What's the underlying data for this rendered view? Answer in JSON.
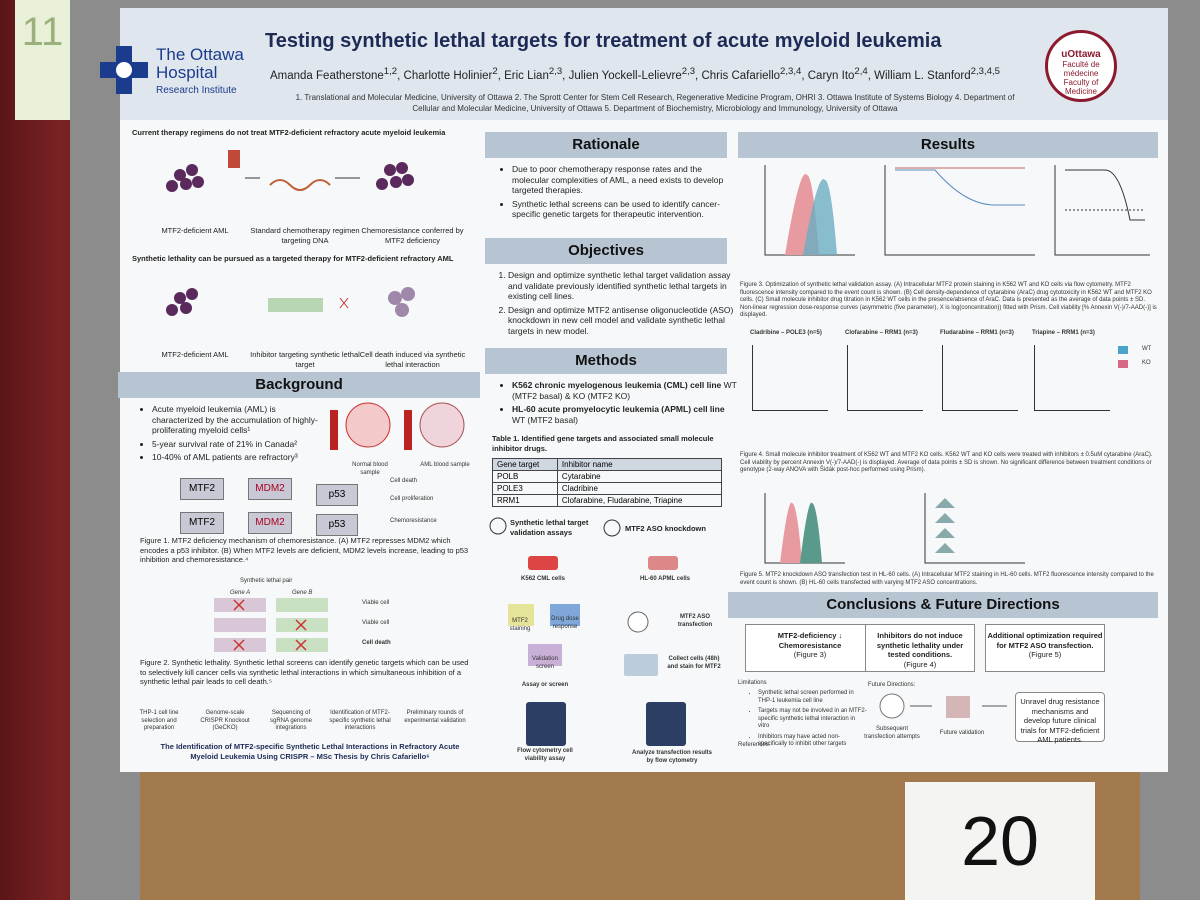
{
  "sign_left": "11",
  "card": "20",
  "header": {
    "logo_left": [
      "The Ottawa",
      "Hospital",
      "Research Institute"
    ],
    "logo_right": [
      "uOttawa",
      "Faculté de médecine",
      "Faculty of Medicine"
    ],
    "title": "Testing synthetic lethal targets for treatment of acute myeloid leukemia",
    "authors": [
      {
        "name": "Amanda Featherstone",
        "sup": "1,2"
      },
      {
        "name": "Charlotte Holinier",
        "sup": "2"
      },
      {
        "name": "Eric Lian",
        "sup": "2,3"
      },
      {
        "name": "Julien Yockell-Lelievre",
        "sup": "2,3"
      },
      {
        "name": "Chris Cafariello",
        "sup": "2,3,4"
      },
      {
        "name": "Caryn Ito",
        "sup": "2,4"
      },
      {
        "name": "William L. Stanford",
        "sup": "2,3,4,5"
      }
    ],
    "affiliations": "1. Translational and Molecular Medicine, University of Ottawa 2. The Sprott Center for Stem Cell Research, Regenerative Medicine Program, OHRI 3. Ottawa Institute of Systems Biology 4. Department of Cellular and Molecular Medicine, University of Ottawa 5. Department of Biochemistry, Microbiology and Immunology, University of Ottawa"
  },
  "intro": {
    "therapy_heading": "Current therapy regimens do not treat MTF2-deficient refractory acute myeloid leukemia",
    "therapy_steps": [
      "MTF2-deficient AML",
      "Standard chemotherapy regimen targeting DNA",
      "Chemoresistance conferred by MTF2 deficiency"
    ],
    "synthetic_heading": "Synthetic lethality can be pursued as a targeted therapy for MTF2-deficient refractory AML",
    "synthetic_steps": [
      "MTF2-deficient AML",
      "Inhibitor targeting synthetic lethal target",
      "Cell death induced via synthetic lethal interaction"
    ]
  },
  "background": {
    "heading": "Background",
    "bullets": [
      "Acute myeloid leukemia (AML) is characterized by the accumulation of highly-proliferating myeloid cells¹",
      "5-year survival rate of 21% in Canada²",
      "10-40% of AML patients are refractory³"
    ],
    "cell_labels": [
      "Normal blood sample",
      "AML blood sample"
    ],
    "pathway": [
      "MTF2",
      "MDM2",
      "p53"
    ],
    "outcomes": [
      "Cell death",
      "Cell proliferation",
      "Chemoresistance"
    ],
    "fig1": "Figure 1. MTF2 deficiency mechanism of chemoresistance. (A) MTF2 represses MDM2 which encodes a p53 inhibitor. (B) When MTF2 levels are deficient, MDM2 levels increase, leading to p53 inhibition and chemoresistance.⁴",
    "pair_label": "Synthetic lethal pair",
    "genes": [
      "Gene A",
      "Gene B"
    ],
    "pair_outcomes": [
      "Viable cell",
      "Viable cell",
      "Cell death"
    ],
    "fig2": "Figure 2. Synthetic lethality. Synthetic lethal screens can identify genetic targets which can be used to selectively kill cancer cells via synthetic lethal interactions in which simultaneous inhibition of a synthetic lethal pair leads to cell death.⁵",
    "pipeline": [
      "THP-1 cell line selection and preparation",
      "Genome-scale CRISPR Knockout (GeCKO)",
      "Sequencing of sgRNA genome integrations",
      "Identification of MTF2-specific synthetic lethal interactions",
      "Preliminary rounds of experimental validation"
    ],
    "thesis": "The Identification of MTF2-specific Synthetic Lethal Interactions in Refractory Acute Myeloid Leukemia Using CRISPR – MSc Thesis by Chris Cafariello⁶"
  },
  "rationale": {
    "heading": "Rationale",
    "bullets": [
      "Due to poor chemotherapy response rates and the molecular complexities of AML, a need exists to develop targeted therapies.",
      "Synthetic lethal screens can be used to identify cancer-specific genetic targets for therapeutic intervention."
    ]
  },
  "objectives": {
    "heading": "Objectives",
    "items": [
      "Design and optimize synthetic lethal target validation assay and validate previously identified synthetic lethal targets in existing cell lines.",
      "Design and optimize MTF2 antisense oligonucleotide (ASO) knockdown in new cell model and validate synthetic lethal targets in new model."
    ]
  },
  "methods": {
    "heading": "Methods",
    "bullets": [
      {
        "bold": "K562 chronic myelogenous leukemia (CML) cell line",
        "rest": "WT (MTF2 basal) & KO (MTF2 KO)"
      },
      {
        "bold": "HL-60 acute promyelocytic leukemia (APML) cell line",
        "rest": "WT (MTF2 basal)"
      }
    ],
    "table_caption": "Table 1. Identified gene targets and associated small molecule inhibitor drugs.",
    "table": {
      "header": [
        "Gene target",
        "Inhibitor name"
      ],
      "rows": [
        [
          "POLB",
          "Cytarabine"
        ],
        [
          "POLE3",
          "Cladribine"
        ],
        [
          "RRM1",
          "Clofarabine, Fludarabine, Triapine"
        ]
      ]
    },
    "assays": [
      "Synthetic lethal target validation assays",
      "MTF2 ASO knockdown"
    ],
    "flow_left": [
      "K562 CML cells",
      "MTF2 staining",
      "Drug dose response",
      "Validation screen",
      "Assay or screen",
      "Flow cytometry cell viability assay"
    ],
    "flow_right": [
      "HL-60 APML cells",
      "MTF2 ASO transfection",
      "Collect cells (48h) and stain for MTF2",
      "Analyze transfection results by flow cytometry"
    ]
  },
  "results": {
    "heading": "Results",
    "fig3": "Figure 3. Optimization of synthetic lethal validation assay. (A) Intracellular MTF2 protein staining in K562 WT and KO cells via flow cytometry. MTF2 fluorescence intensity compared to the event count is shown. (B) Cell density-dependence of cytarabine (AraC) drug cytotoxicity in K562 WT and MTF2 KO cells. (C) Small molecule inhibitor drug titration in K562 WT cells in the presence/absence of AraC. Data is presented as the average of data points ± SD. Non-linear regression dose-response curves (asymmetric (five parameter), X is log(concentration)) fitted with Prism. Cell viability [% Annexin V(-)/7-AAD(-)] is displayed.",
    "plots": [
      "Cladribine – POLE3 (n=5)",
      "Clofarabine – RRM1 (n=3)",
      "Fludarabine – RRM1 (n=3)",
      "Triapine – RRM1 (n=3)"
    ],
    "legend": [
      "WT",
      "KO"
    ],
    "fig4": "Figure 4. Small molecule inhibitor treatment of K562 WT and MTF2 KO cells. K562 WT and KO cells were treated with inhibitors ± 0.5uM cytarabine (AraC). Cell viability by percent Annexin V(-)/7-AAD(-) is displayed. Average of data points ± SD is shown. No significant difference between treatment conditions or genotype (2-way ANOVA with Šidák post-hoc performed using Prism).",
    "fig5": "Figure 5. MTF2 knockdown ASO transfection test in HL-60 cells. (A) Intracellular MTF2 staining in HL-60 cells. MTF2 fluorescence intensity compared to the event count is shown. (B) HL-60 cells transfected with varying MTF2 ASO concentrations."
  },
  "conclusions": {
    "heading": "Conclusions & Future Directions",
    "boxes": [
      {
        "text": "MTF2-deficiency ↓ Chemoresistance",
        "fig": "(Figure 3)"
      },
      {
        "text": "Inhibitors do not induce synthetic lethality under tested conditions.",
        "fig": "(Figure 4)"
      },
      {
        "text": "Additional optimization required for MTF2 ASO transfection.",
        "fig": "(Figure 5)"
      }
    ],
    "limitations_heading": "Limitations",
    "limitations": [
      "Synthetic lethal screen performed in THP-1 leukemia cell line",
      "Targets may not be involved in an MTF2-specific synthetic lethal interaction in vitro",
      "Inhibitors may have acted non-specifically to inhibit other targets"
    ],
    "future_heading": "Future Directions:",
    "future": [
      "Subsequent transfection attempts",
      "Future validation",
      "Unravel drug resistance mechanisms and develop future clinical trials for MTF2-deficient AML patients."
    ],
    "references_heading": "References:"
  }
}
